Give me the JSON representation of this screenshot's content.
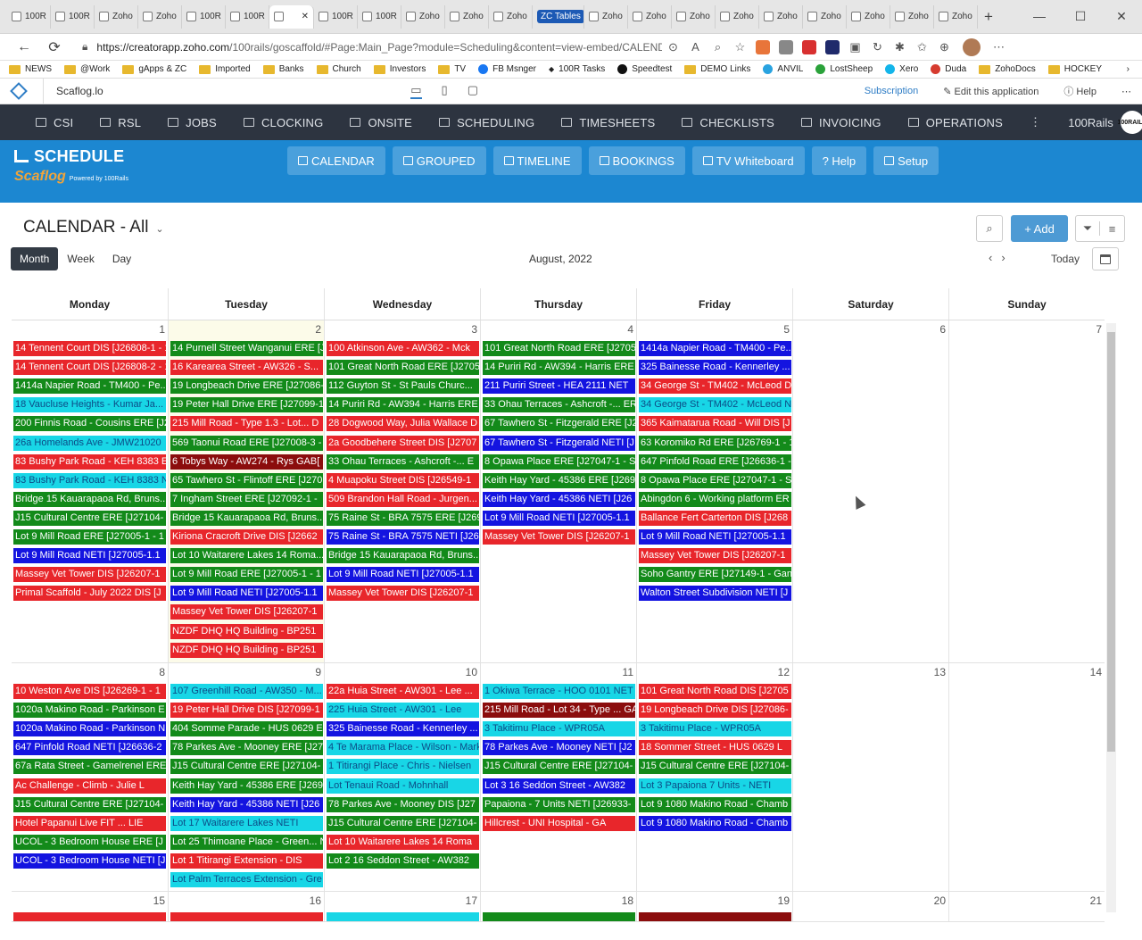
{
  "browser": {
    "tabs": [
      "100R",
      "100R",
      "Zoho",
      "Zoho",
      "100R",
      "100R",
      "",
      "100R",
      "100R",
      "Zoho",
      "Zoho",
      "Zoho",
      "ZC Tables",
      "Zoho",
      "Zoho",
      "Zoho",
      "Zoho",
      "Zoho",
      "Zoho",
      "Zoho",
      "Zoho",
      "Zoho"
    ],
    "active_tab_index": 6,
    "new_tab": "+",
    "url_host": "https://creatorapp.zoho.com",
    "url_path": "/100rails/goscaffold/#Page:Main_Page?module=Scheduling&content=view-embed/CALENDAR_of...",
    "bookmarks": [
      "NEWS",
      "@Work",
      "gApps & ZC",
      "Imported",
      "Banks",
      "Church",
      "Investors",
      "TV",
      "FB Msnger",
      "100R Tasks",
      "Speedtest",
      "DEMO Links",
      "ANVIL",
      "LostSheep",
      "Xero",
      "Duda",
      "ZohoDocs",
      "HOCKEY"
    ]
  },
  "zoho_bar": {
    "app_name": "Scaflog.lo",
    "subscription": "Subscription",
    "edit": "Edit this application",
    "help": "Help"
  },
  "main_nav": {
    "items": [
      "CSI",
      "RSL",
      "JOBS",
      "CLOCKING",
      "ONSITE",
      "SCHEDULING",
      "TIMESHEETS",
      "CHECKLISTS",
      "INVOICING",
      "OPERATIONS"
    ],
    "more": "⋮",
    "account": "100Rails",
    "logo_text": "100RAILS"
  },
  "banner": {
    "title": "SCHEDULE",
    "brand": "Scaflog",
    "powered": "Powered by 100Rails",
    "buttons": [
      "CALENDAR",
      "GROUPED",
      "TIMELINE",
      "BOOKINGS",
      "TV Whiteboard",
      "? Help",
      "Setup"
    ]
  },
  "calendar": {
    "title": "CALENDAR - All",
    "add": "+ Add",
    "views": [
      "Month",
      "Week",
      "Day"
    ],
    "active_view": "Month",
    "month_label": "August, 2022",
    "today": "Today",
    "weekdays": [
      "Monday",
      "Tuesday",
      "Wednesday",
      "Thursday",
      "Friday",
      "Saturday",
      "Sunday"
    ],
    "weeks": [
      {
        "days": [
          "1",
          "2",
          "3",
          "4",
          "5",
          "6",
          "7"
        ],
        "today_index": 1,
        "events": [
          [
            {
              "t": "14 Tennent Court DIS [J26808-1 - 1",
              "c": "#e8262b"
            },
            {
              "t": "14 Tennent Court DIS [J26808-2 - 1",
              "c": "#e8262b"
            },
            {
              "t": "1414a Napier Road - TM400 - Pe...",
              "c": "#138a1a"
            },
            {
              "t": "18 Vaucluse Heights - Kumar Ja...",
              "c": "#18d6e6"
            },
            {
              "t": "200 Finnis Road - Cousins ERE [J2",
              "c": "#138a1a"
            },
            {
              "t": "26a Homelands Ave - JMW21020",
              "c": "#18d6e6"
            },
            {
              "t": "83 Bushy Park Road - KEH 8383 E",
              "c": "#e8262b"
            },
            {
              "t": "83 Bushy Park Road - KEH 8383 N",
              "c": "#18d6e6"
            },
            {
              "t": "Bridge 15 Kauarapaoa Rd, Bruns...",
              "c": "#138a1a"
            },
            {
              "t": "J15 Cultural Centre ERE [J27104-",
              "c": "#138a1a"
            },
            {
              "t": "Lot 9 Mill Road ERE [J27005-1 - 1",
              "c": "#138a1a"
            },
            {
              "t": "Lot 9 Mill Road NETI [J27005-1.1",
              "c": "#1414e0"
            },
            {
              "t": "Massey Vet Tower DIS [J26207-1",
              "c": "#e8262b"
            },
            {
              "t": "Primal Scaffold - July 2022 DIS [J",
              "c": "#e8262b"
            }
          ],
          [
            {
              "t": "14 Purnell Street Wanganui ERE [J",
              "c": "#138a1a"
            },
            {
              "t": "16 Karearea Street - AW326 - S...",
              "c": "#e8262b"
            },
            {
              "t": "19 Longbeach Drive ERE [J27086-",
              "c": "#138a1a"
            },
            {
              "t": "19 Peter Hall Drive ERE [J27099-1",
              "c": "#138a1a"
            },
            {
              "t": "215 Mill Road - Type 1.3 - Lot... D",
              "c": "#e8262b"
            },
            {
              "t": "569 Taonui Road ERE [J27008-3 -",
              "c": "#138a1a"
            },
            {
              "t": "6 Tobys Way - AW274 - Rys GAB[",
              "c": "#8b0d0d"
            },
            {
              "t": "65 Tawhero St - Flintoff ERE [J270",
              "c": "#138a1a"
            },
            {
              "t": "7 Ingham Street ERE [J27092-1 -",
              "c": "#138a1a"
            },
            {
              "t": "Bridge 15 Kauarapaoa Rd, Bruns...",
              "c": "#138a1a"
            },
            {
              "t": "Kiriona Cracroft Drive DIS [J2662",
              "c": "#e8262b"
            },
            {
              "t": "Lot 10 Waitarere Lakes 14 Roma...",
              "c": "#138a1a"
            },
            {
              "t": "Lot 9 Mill Road ERE [J27005-1 - 1",
              "c": "#138a1a"
            },
            {
              "t": "Lot 9 Mill Road NETI [J27005-1.1",
              "c": "#1414e0"
            },
            {
              "t": "Massey Vet Tower DIS [J26207-1",
              "c": "#e8262b"
            },
            {
              "t": "NZDF DHQ HQ Building - BP251",
              "c": "#e8262b"
            },
            {
              "t": "NZDF DHQ HQ Building - BP251",
              "c": "#e8262b"
            }
          ],
          [
            {
              "t": "100 Atkinson Ave - AW362 - Mck",
              "c": "#e8262b"
            },
            {
              "t": "101 Great North Road ERE [J2705",
              "c": "#138a1a"
            },
            {
              "t": "112 Guyton St - St Pauls Churc...",
              "c": "#138a1a"
            },
            {
              "t": "14 Puriri Rd - AW394 - Harris ERE",
              "c": "#138a1a"
            },
            {
              "t": "28 Dogwood Way, Julia Wallace D",
              "c": "#e8262b"
            },
            {
              "t": "2a Goodbehere Street DIS [J2707",
              "c": "#e8262b"
            },
            {
              "t": "33 Ohau Terraces - Ashcroft -... E",
              "c": "#138a1a"
            },
            {
              "t": "4 Muapoku Street DIS [J26549-1",
              "c": "#e8262b"
            },
            {
              "t": "509 Brandon Hall Road - Jurgen...",
              "c": "#e8262b"
            },
            {
              "t": "75 Raine St - BRA 7575 ERE [J269",
              "c": "#138a1a"
            },
            {
              "t": "75 Raine St - BRA 7575 NETI [J26",
              "c": "#1414e0"
            },
            {
              "t": "Bridge 15 Kauarapaoa Rd, Bruns...",
              "c": "#138a1a"
            },
            {
              "t": "Lot 9 Mill Road NETI [J27005-1.1",
              "c": "#1414e0"
            },
            {
              "t": "Massey Vet Tower DIS [J26207-1",
              "c": "#e8262b"
            }
          ],
          [
            {
              "t": "101 Great North Road ERE [J2705",
              "c": "#138a1a"
            },
            {
              "t": "14 Puriri Rd - AW394 - Harris ERE",
              "c": "#138a1a"
            },
            {
              "t": "211 Puriri Street - HEA 2111 NET",
              "c": "#1414e0"
            },
            {
              "t": "33 Ohau Terraces - Ashcroft -... ER",
              "c": "#138a1a"
            },
            {
              "t": "67 Tawhero St - Fitzgerald ERE [J2",
              "c": "#138a1a"
            },
            {
              "t": "67 Tawhero St - Fitzgerald NETI [J",
              "c": "#1414e0"
            },
            {
              "t": "8 Opawa Place ERE [J27047-1 - S",
              "c": "#138a1a"
            },
            {
              "t": "Keith Hay Yard - 45386 ERE [J269",
              "c": "#138a1a"
            },
            {
              "t": "Keith Hay Yard - 45386 NETI [J26",
              "c": "#1414e0"
            },
            {
              "t": "Lot 9 Mill Road NETI [J27005-1.1",
              "c": "#1414e0"
            },
            {
              "t": "Massey Vet Tower DIS [J26207-1",
              "c": "#e8262b"
            }
          ],
          [
            {
              "t": "1414a Napier Road - TM400 - Pe...",
              "c": "#1414e0"
            },
            {
              "t": "325 Bainesse Road - Kennerley ...",
              "c": "#1414e0"
            },
            {
              "t": "34 George St - TM402 - McLeod D",
              "c": "#e8262b"
            },
            {
              "t": "34 George St - TM402 - McLeod N",
              "c": "#18d6e6"
            },
            {
              "t": "365 Kaimatarua Road - Will DIS [J",
              "c": "#e8262b"
            },
            {
              "t": "63 Koromiko Rd ERE [J26769-1 - 1",
              "c": "#138a1a"
            },
            {
              "t": "647 Pinfold Road ERE [J26636-1 -",
              "c": "#138a1a"
            },
            {
              "t": "8 Opawa Place ERE [J27047-1 - S",
              "c": "#138a1a"
            },
            {
              "t": "Abingdon 6 - Working platform ER",
              "c": "#138a1a"
            },
            {
              "t": "Ballance Fert Carterton DIS [J268",
              "c": "#e8262b"
            },
            {
              "t": "Lot 9 Mill Road NETI [J27005-1.1",
              "c": "#1414e0"
            },
            {
              "t": "Massey Vet Tower DIS [J26207-1",
              "c": "#e8262b"
            },
            {
              "t": "Soho Gantry ERE [J27149-1 - Gan",
              "c": "#138a1a"
            },
            {
              "t": "Walton Street Subdivision NETI [J",
              "c": "#1414e0"
            }
          ],
          [],
          []
        ]
      },
      {
        "days": [
          "8",
          "9",
          "10",
          "11",
          "12",
          "13",
          "14"
        ],
        "today_index": -1,
        "events": [
          [
            {
              "t": "10 Weston Ave DIS [J26269-1 - 1",
              "c": "#e8262b"
            },
            {
              "t": "1020a Makino Road - Parkinson E",
              "c": "#138a1a"
            },
            {
              "t": "1020a Makino Road - Parkinson N",
              "c": "#1414e0"
            },
            {
              "t": "647 Pinfold Road NETI [J26636-2",
              "c": "#1414e0"
            },
            {
              "t": "67a Rata Street - Gamelrenel ERE",
              "c": "#138a1a"
            },
            {
              "t": "Ac Challenge - Climb - Julie L",
              "c": "#e8262b"
            },
            {
              "t": "J15 Cultural Centre ERE [J27104-",
              "c": "#138a1a"
            },
            {
              "t": "Hotel Papanui Live FIT ... LIE",
              "c": "#e8262b"
            },
            {
              "t": "UCOL - 3 Bedroom House ERE [J",
              "c": "#138a1a"
            },
            {
              "t": "UCOL - 3 Bedroom House NETI [J",
              "c": "#1414e0"
            }
          ],
          [
            {
              "t": "107 Greenhill Road - AW350 - M...",
              "c": "#18d6e6"
            },
            {
              "t": "19 Peter Hall Drive DIS [J27099-1",
              "c": "#e8262b"
            },
            {
              "t": "404 Somme Parade - HUS 0629 E",
              "c": "#138a1a"
            },
            {
              "t": "78 Parkes Ave - Mooney ERE [J27",
              "c": "#138a1a"
            },
            {
              "t": "J15 Cultural Centre ERE [J27104-",
              "c": "#138a1a"
            },
            {
              "t": "Keith Hay Yard - 45386 ERE [J269",
              "c": "#138a1a"
            },
            {
              "t": "Keith Hay Yard - 45386 NETI [J26",
              "c": "#1414e0"
            },
            {
              "t": "Lot 17 Waitarere Lakes NETI",
              "c": "#18d6e6"
            },
            {
              "t": "Lot 25 Thimoane Place - Green... N",
              "c": "#138a1a"
            },
            {
              "t": "Lot 1 Titirangi Extension - DIS",
              "c": "#e8262b"
            },
            {
              "t": "Lot Palm Terraces Extension - Gre",
              "c": "#18d6e6"
            }
          ],
          [
            {
              "t": "22a Huia Street - AW301 - Lee ...",
              "c": "#e8262b"
            },
            {
              "t": "225 Huia Street - AW301 - Lee",
              "c": "#18d6e6"
            },
            {
              "t": "325 Bainesse Road - Kennerley ...",
              "c": "#1414e0"
            },
            {
              "t": "4 Te Marama Place - Wilson - Mark",
              "c": "#18d6e6"
            },
            {
              "t": "1 Titirangi Place - Chris - Nielsen",
              "c": "#18d6e6"
            },
            {
              "t": "Lot Tenaui Road - Mohnhall",
              "c": "#18d6e6"
            },
            {
              "t": "78 Parkes Ave - Mooney DIS [J27",
              "c": "#138a1a"
            },
            {
              "t": "J15 Cultural Centre ERE [J27104-",
              "c": "#138a1a"
            },
            {
              "t": "Lot 10 Waitarere Lakes 14 Roma",
              "c": "#e8262b"
            },
            {
              "t": "Lot 2 16 Seddon Street - AW382",
              "c": "#138a1a"
            }
          ],
          [
            {
              "t": "1 Okiwa Terrace - HOO 0101 NET",
              "c": "#18d6e6"
            },
            {
              "t": "215 Mill Road - Lot 34 - Type ... GA",
              "c": "#8b0d0d"
            },
            {
              "t": "3 Takitimu Place - WPR05A",
              "c": "#18d6e6"
            },
            {
              "t": "78 Parkes Ave - Mooney NETI [J2",
              "c": "#1414e0"
            },
            {
              "t": "J15 Cultural Centre ERE [J27104-",
              "c": "#138a1a"
            },
            {
              "t": "Lot 3 16 Seddon Street - AW382",
              "c": "#1414e0"
            },
            {
              "t": "Papaiona - 7 Units NETI [J26933-",
              "c": "#138a1a"
            },
            {
              "t": "Hillcrest - UNI Hospital - GA",
              "c": "#e8262b"
            }
          ],
          [
            {
              "t": "101 Great North Road DIS [J2705",
              "c": "#e8262b"
            },
            {
              "t": "19 Longbeach Drive DIS [J27086-",
              "c": "#e8262b"
            },
            {
              "t": "3 Takitimu Place - WPR05A",
              "c": "#18d6e6"
            },
            {
              "t": "18 Sommer Street - HUS 0629 L",
              "c": "#e8262b"
            },
            {
              "t": "J15 Cultural Centre ERE [J27104-",
              "c": "#138a1a"
            },
            {
              "t": "Lot 3 Papaiona 7 Units - NETI",
              "c": "#18d6e6"
            },
            {
              "t": "Lot 9 1080 Makino Road - Chamb",
              "c": "#138a1a"
            },
            {
              "t": "Lot 9 1080 Makino Road - Chamb",
              "c": "#1414e0"
            }
          ],
          [],
          []
        ]
      },
      {
        "days": [
          "15",
          "16",
          "17",
          "18",
          "19",
          "20",
          "21"
        ],
        "today_index": -1,
        "events": [
          [
            {
              "t": "",
              "c": "#e8262b"
            }
          ],
          [
            {
              "t": "",
              "c": "#e8262b"
            }
          ],
          [
            {
              "t": "",
              "c": "#18d6e6"
            }
          ],
          [
            {
              "t": "",
              "c": "#138a1a"
            }
          ],
          [
            {
              "t": "",
              "c": "#8b0d0d"
            }
          ],
          [],
          []
        ]
      }
    ]
  }
}
